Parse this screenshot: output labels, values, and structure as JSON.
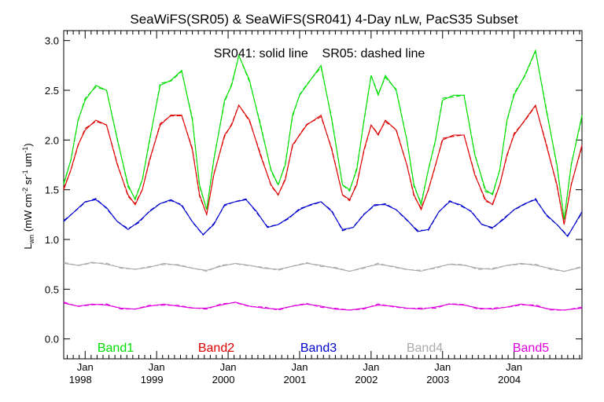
{
  "chart_data": {
    "type": "line",
    "title": "SeaWiFS(SR05) & SeaWiFS(SR041) 4-Day nLw, PacS35 Subset",
    "annotation": "SR041: solid line    SR05: dashed line",
    "ylabel": "L_wn (mW cm^-2 sr^-1 um^-1)",
    "ylim": [
      -0.2,
      3.1
    ],
    "xlim": [
      1997.7,
      2004.95
    ],
    "y_ticks": [
      "0.0",
      "0.5",
      "1.0",
      "1.5",
      "2.0",
      "2.5",
      "3.0"
    ],
    "x_ticks": [
      {
        "month": "Jan",
        "year": "1998"
      },
      {
        "month": "Jan",
        "year": "1999"
      },
      {
        "month": "Jan",
        "year": "2000"
      },
      {
        "month": "Jan",
        "year": "2001"
      },
      {
        "month": "Jan",
        "year": "2002"
      },
      {
        "month": "Jan",
        "year": "2003"
      },
      {
        "month": "Jan",
        "year": "2004"
      }
    ],
    "grid": false,
    "legend_position": "bottom, inside plot",
    "line_styles": {
      "SR041": "solid",
      "SR05": "dashed"
    },
    "series": [
      {
        "name": "Band1",
        "color": "#00dd00",
        "x": [
          1997.7,
          1997.8,
          1997.9,
          1998.0,
          1998.15,
          1998.3,
          1998.45,
          1998.6,
          1998.7,
          1998.8,
          1998.9,
          1999.05,
          1999.2,
          1999.35,
          1999.5,
          1999.6,
          1999.7,
          1999.8,
          1999.95,
          2000.05,
          2000.15,
          2000.3,
          2000.45,
          2000.6,
          2000.7,
          2000.8,
          2000.9,
          2001.0,
          2001.1,
          2001.3,
          2001.45,
          2001.6,
          2001.7,
          2001.8,
          2001.9,
          2002.0,
          2002.1,
          2002.2,
          2002.35,
          2002.5,
          2002.6,
          2002.7,
          2002.8,
          2002.9,
          2003.0,
          2003.15,
          2003.3,
          2003.45,
          2003.6,
          2003.7,
          2003.8,
          2003.9,
          2004.0,
          2004.15,
          2004.3,
          2004.45,
          2004.6,
          2004.7,
          2004.8,
          2004.95
        ],
        "y": [
          1.55,
          1.8,
          2.2,
          2.4,
          2.55,
          2.5,
          2.0,
          1.55,
          1.4,
          1.6,
          2.0,
          2.55,
          2.6,
          2.7,
          2.2,
          1.55,
          1.3,
          1.8,
          2.4,
          2.55,
          2.85,
          2.6,
          2.15,
          1.7,
          1.55,
          1.75,
          2.25,
          2.45,
          2.55,
          2.75,
          2.2,
          1.55,
          1.5,
          1.7,
          2.2,
          2.65,
          2.45,
          2.65,
          2.5,
          2.0,
          1.55,
          1.35,
          1.7,
          2.0,
          2.4,
          2.45,
          2.45,
          1.85,
          1.5,
          1.45,
          1.7,
          2.2,
          2.45,
          2.65,
          2.9,
          2.3,
          1.75,
          1.2,
          1.75,
          2.25
        ]
      },
      {
        "name": "Band2",
        "color": "#dd0000",
        "x": [
          1997.7,
          1997.8,
          1997.9,
          1998.0,
          1998.15,
          1998.3,
          1998.45,
          1998.6,
          1998.7,
          1998.8,
          1998.9,
          1999.05,
          1999.2,
          1999.35,
          1999.5,
          1999.6,
          1999.7,
          1999.8,
          1999.95,
          2000.05,
          2000.15,
          2000.3,
          2000.45,
          2000.6,
          2000.7,
          2000.8,
          2000.9,
          2001.0,
          2001.1,
          2001.3,
          2001.45,
          2001.6,
          2001.7,
          2001.8,
          2001.9,
          2002.0,
          2002.1,
          2002.2,
          2002.35,
          2002.5,
          2002.6,
          2002.7,
          2002.8,
          2002.9,
          2003.0,
          2003.15,
          2003.3,
          2003.45,
          2003.6,
          2003.7,
          2003.8,
          2003.9,
          2004.0,
          2004.15,
          2004.3,
          2004.45,
          2004.6,
          2004.7,
          2004.8,
          2004.95
        ],
        "y": [
          1.5,
          1.7,
          1.95,
          2.1,
          2.2,
          2.15,
          1.75,
          1.45,
          1.35,
          1.5,
          1.8,
          2.15,
          2.25,
          2.25,
          1.9,
          1.45,
          1.25,
          1.65,
          2.05,
          2.15,
          2.35,
          2.2,
          1.85,
          1.55,
          1.45,
          1.6,
          1.95,
          2.05,
          2.15,
          2.25,
          1.9,
          1.45,
          1.4,
          1.55,
          1.9,
          2.15,
          2.05,
          2.2,
          2.1,
          1.75,
          1.45,
          1.3,
          1.5,
          1.75,
          2.0,
          2.05,
          2.05,
          1.65,
          1.4,
          1.35,
          1.55,
          1.85,
          2.05,
          2.2,
          2.35,
          1.95,
          1.55,
          1.15,
          1.55,
          1.95
        ]
      },
      {
        "name": "Band3",
        "color": "#0000cc",
        "x": [
          1997.7,
          1997.85,
          1998.0,
          1998.15,
          1998.3,
          1998.45,
          1998.6,
          1998.75,
          1998.9,
          1999.05,
          1999.2,
          1999.35,
          1999.5,
          1999.65,
          1999.8,
          1999.95,
          2000.1,
          2000.25,
          2000.4,
          2000.55,
          2000.7,
          2000.85,
          2001.0,
          2001.15,
          2001.3,
          2001.45,
          2001.6,
          2001.75,
          2001.9,
          2002.05,
          2002.2,
          2002.35,
          2002.5,
          2002.65,
          2002.8,
          2002.95,
          2003.1,
          2003.25,
          2003.4,
          2003.55,
          2003.7,
          2003.85,
          2004.0,
          2004.15,
          2004.3,
          2004.45,
          2004.6,
          2004.75,
          2004.95
        ],
        "y": [
          1.18,
          1.28,
          1.38,
          1.4,
          1.32,
          1.18,
          1.1,
          1.18,
          1.28,
          1.36,
          1.4,
          1.34,
          1.18,
          1.05,
          1.15,
          1.35,
          1.38,
          1.4,
          1.28,
          1.12,
          1.15,
          1.22,
          1.3,
          1.35,
          1.38,
          1.28,
          1.1,
          1.12,
          1.25,
          1.35,
          1.35,
          1.3,
          1.2,
          1.08,
          1.1,
          1.28,
          1.38,
          1.35,
          1.28,
          1.15,
          1.12,
          1.2,
          1.3,
          1.36,
          1.4,
          1.25,
          1.15,
          1.03,
          1.28
        ]
      },
      {
        "name": "Band4",
        "color": "#aaaaaa",
        "x": [
          1997.7,
          1997.9,
          1998.1,
          1998.3,
          1998.5,
          1998.7,
          1998.9,
          1999.1,
          1999.3,
          1999.5,
          1999.7,
          1999.9,
          2000.1,
          2000.3,
          2000.5,
          2000.7,
          2000.9,
          2001.1,
          2001.3,
          2001.5,
          2001.7,
          2001.9,
          2002.1,
          2002.3,
          2002.5,
          2002.7,
          2002.9,
          2003.1,
          2003.3,
          2003.5,
          2003.7,
          2003.9,
          2004.1,
          2004.3,
          2004.5,
          2004.7,
          2004.95
        ],
        "y": [
          0.76,
          0.74,
          0.77,
          0.75,
          0.72,
          0.7,
          0.72,
          0.76,
          0.74,
          0.71,
          0.69,
          0.73,
          0.76,
          0.74,
          0.71,
          0.7,
          0.73,
          0.76,
          0.74,
          0.71,
          0.68,
          0.72,
          0.75,
          0.73,
          0.7,
          0.68,
          0.72,
          0.75,
          0.74,
          0.71,
          0.7,
          0.74,
          0.76,
          0.74,
          0.71,
          0.68,
          0.72
        ]
      },
      {
        "name": "Band5",
        "color": "#dd00dd",
        "x": [
          1997.7,
          1997.9,
          1998.1,
          1998.3,
          1998.5,
          1998.7,
          1998.9,
          1999.1,
          1999.3,
          1999.5,
          1999.7,
          1999.9,
          2000.1,
          2000.3,
          2000.5,
          2000.7,
          2000.9,
          2001.1,
          2001.3,
          2001.5,
          2001.7,
          2001.9,
          2002.1,
          2002.3,
          2002.5,
          2002.7,
          2002.9,
          2003.1,
          2003.3,
          2003.5,
          2003.7,
          2003.9,
          2004.1,
          2004.3,
          2004.5,
          2004.7,
          2004.95
        ],
        "y": [
          0.36,
          0.33,
          0.35,
          0.34,
          0.31,
          0.3,
          0.33,
          0.35,
          0.33,
          0.31,
          0.31,
          0.34,
          0.37,
          0.33,
          0.31,
          0.3,
          0.33,
          0.35,
          0.33,
          0.3,
          0.29,
          0.31,
          0.34,
          0.33,
          0.31,
          0.3,
          0.32,
          0.35,
          0.34,
          0.31,
          0.3,
          0.32,
          0.35,
          0.33,
          0.3,
          0.29,
          0.31
        ]
      }
    ]
  }
}
